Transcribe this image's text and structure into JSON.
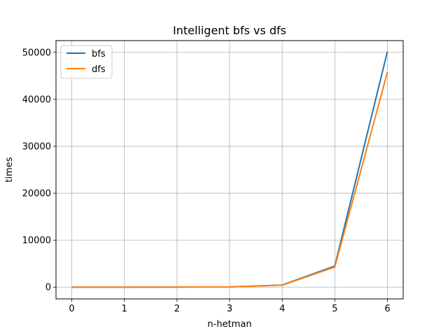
{
  "chart_data": {
    "type": "line",
    "title": "Intelligent bfs vs dfs",
    "xlabel": "n-hetman",
    "ylabel": "times",
    "x": [
      0,
      1,
      2,
      3,
      4,
      5,
      6
    ],
    "xlim": [
      -0.3,
      6.3
    ],
    "ylim": [
      -2500,
      52500
    ],
    "xticks": [
      0,
      1,
      2,
      3,
      4,
      5,
      6
    ],
    "yticks": [
      0,
      10000,
      20000,
      30000,
      40000,
      50000
    ],
    "grid": true,
    "legend_position": "top-left",
    "series": [
      {
        "name": "bfs",
        "color": "#1f77b4",
        "values": [
          0,
          1,
          10,
          60,
          450,
          4500,
          50200
        ]
      },
      {
        "name": "dfs",
        "color": "#ff7f0e",
        "values": [
          0,
          1,
          10,
          60,
          420,
          4300,
          45800
        ]
      }
    ]
  }
}
